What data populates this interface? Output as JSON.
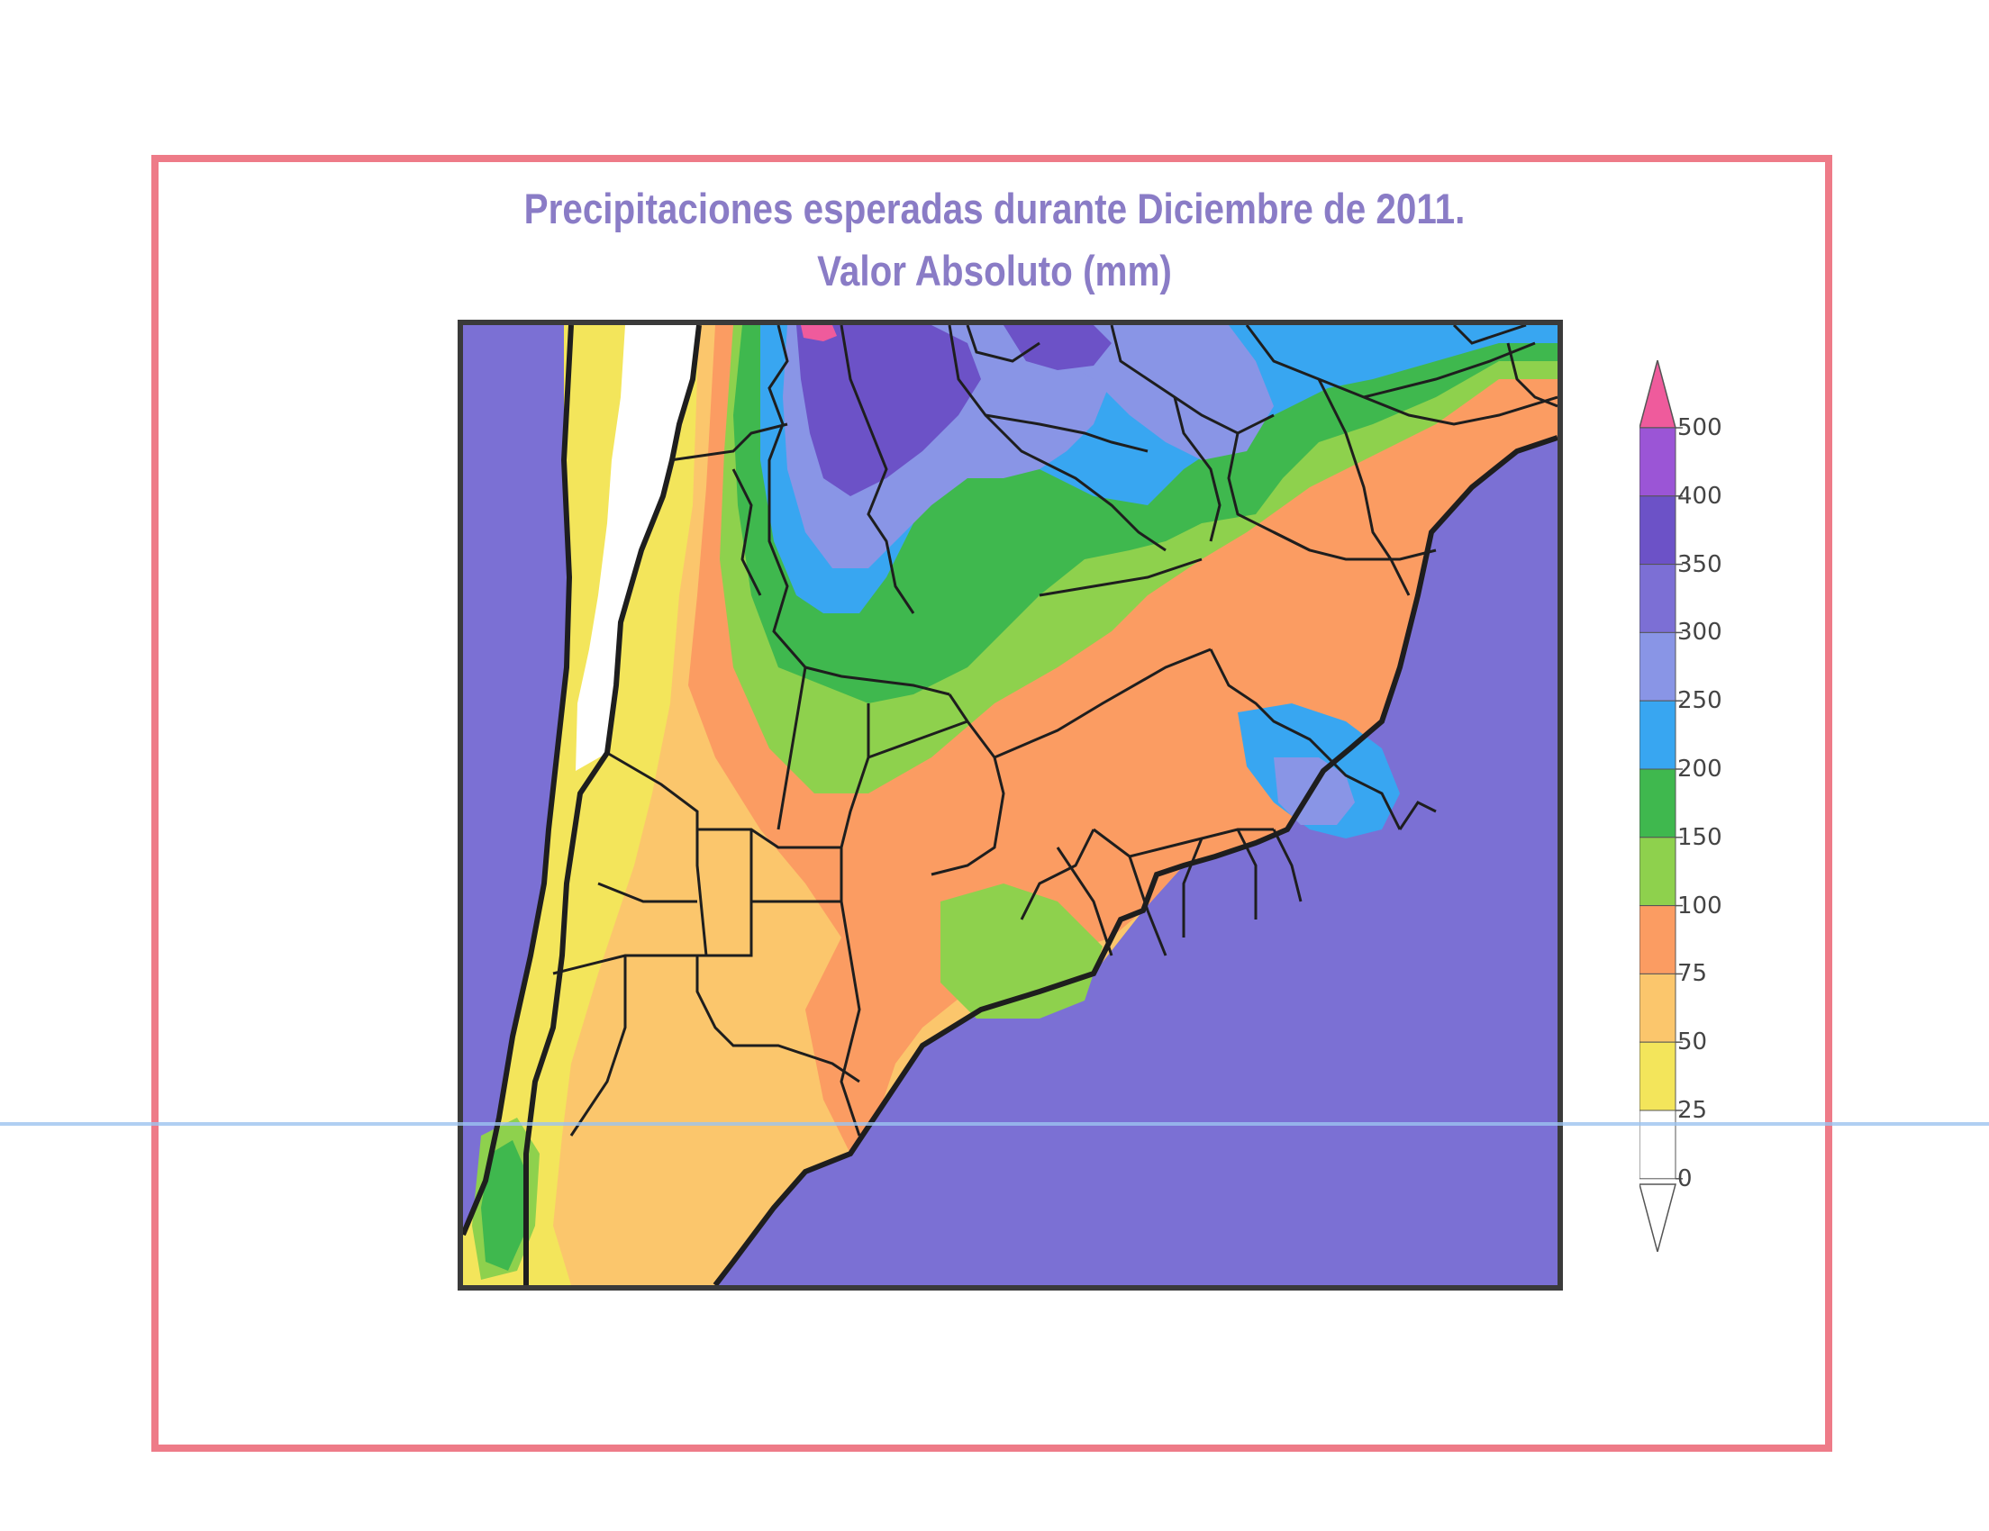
{
  "title_line1": "Precipitaciones esperadas durante  Diciembre de 2011.",
  "title_line2": "Valor Absoluto (mm)",
  "legend": {
    "unit": "mm",
    "levels": [
      "500",
      "400",
      "350",
      "300",
      "250",
      "200",
      "150",
      "100",
      "75",
      "50",
      "25",
      "0"
    ],
    "colors": [
      "#ef5b9c",
      "#9b55d6",
      "#6c52c7",
      "#7c6fd5",
      "#8995e6",
      "#38a6f1",
      "#3fb84e",
      "#8ed14d",
      "#fb9c62",
      "#fbc66c",
      "#f3e55b",
      "#ffffff"
    ]
  },
  "map": {
    "ocean_color": "#7b70d4",
    "border_color": "#1e1e1e"
  }
}
